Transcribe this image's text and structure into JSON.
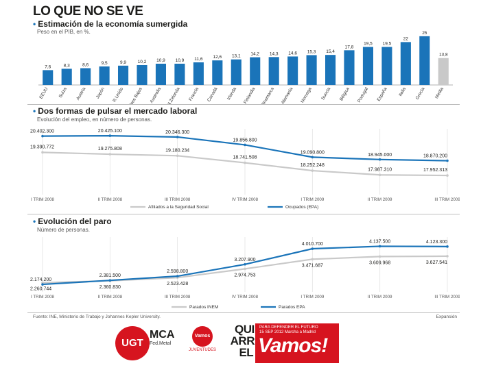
{
  "header": {
    "title": "LO QUE NO SE VE"
  },
  "colors": {
    "blue": "#1a74b9",
    "grey": "#c9c9c9",
    "red": "#d6141f",
    "text": "#1d1d1b"
  },
  "sections": {
    "s1": {
      "title": "Estimación de la economía sumergida",
      "subtitle": "Peso en el PIB, en %."
    },
    "s2": {
      "title": "Dos formas de pulsar el mercado laboral",
      "subtitle": "Evolución del empleo, en número de personas."
    },
    "s3": {
      "title": "Evolución del paro",
      "subtitle": "Número de personas."
    }
  },
  "footer": {
    "source": "Fuente: INE, Ministerio de Trabajo y Johannes Kepler University.",
    "credit": "Expansión"
  },
  "logos": {
    "ugt": "UGT",
    "mca_name": "MCA",
    "mca_sub": "Fed.Metal",
    "vamos_small_circle": "Vamos",
    "vamos_small_text": "JUVENTUDES",
    "quieren_lines": [
      "QUIEREN",
      "ARRUINAR",
      "EL PAÍS"
    ],
    "vamos_top": [
      "PARA DEFENDER EL FUTURO",
      "15 SEP 2012 Marcha a Madrid"
    ],
    "vamos_main": "Vamos!"
  },
  "chart_data": [
    {
      "type": "bar",
      "title": "Estimación de la economía sumergida",
      "subtitle": "Peso en el PIB, en %.",
      "categories": [
        "EEUU",
        "Suiza",
        "Austria",
        "Japón",
        "R.Unido",
        "Países Bajos",
        "Australia",
        "N.Zelanda",
        "Francia",
        "Canadá",
        "Irlanda",
        "Finlandia",
        "Dinamarca",
        "Alemania",
        "Noruega",
        "Suecia",
        "Bélgica",
        "Portugal",
        "España",
        "Italia",
        "Grecia",
        "Media"
      ],
      "values": [
        7.6,
        8.3,
        8.6,
        9.5,
        9.9,
        10.2,
        10.9,
        10.9,
        11.6,
        12.6,
        13.1,
        14.2,
        14.3,
        14.6,
        15.3,
        15.4,
        17.8,
        19.5,
        19.5,
        22,
        25,
        13.8
      ],
      "value_labels": [
        "7,6",
        "8,3",
        "8,6",
        "9,5",
        "9,9",
        "10,2",
        "10,9",
        "10,9",
        "11,6",
        "12,6",
        "13,1",
        "14,2",
        "14,3",
        "14,6",
        "15,3",
        "15,4",
        "17,8",
        "19,5",
        "19,5",
        "22",
        "25",
        "13,8"
      ],
      "highlight": "Media",
      "ylim": [
        0,
        26
      ]
    },
    {
      "type": "line",
      "title": "Dos formas de pulsar el mercado laboral",
      "subtitle": "Evolución del empleo, en número de personas.",
      "x": [
        "I TRIM 2008",
        "II TRIM 2008",
        "III TRIM 2008",
        "IV TRIM 2008",
        "I TRIM 2009",
        "II TRIM 2009",
        "III TRIM 2009"
      ],
      "series": [
        {
          "name": "Ocupados (EPA)",
          "color": "#1a74b9",
          "values": [
            20402300,
            20425100,
            20346300,
            19856800,
            19090800,
            18945000,
            18870200
          ],
          "labels": [
            "20.402.300",
            "20.425.100",
            "20.346.300",
            "19.856.800",
            "19.090.800",
            "18.945.000",
            "18.870.200"
          ]
        },
        {
          "name": "Afiliados a la Seguridad Social",
          "color": "#c9c9c9",
          "values": [
            19390772,
            19275808,
            19180234,
            18741508,
            18252248,
            17987310,
            17952313
          ],
          "labels": [
            "19.390.772",
            "19.275.808",
            "19.180.234",
            "18.741.508",
            "18.252.248",
            "17.987.310",
            "17.952.313"
          ]
        }
      ],
      "ylim": [
        17700000,
        20600000
      ]
    },
    {
      "type": "line",
      "title": "Evolución del paro",
      "subtitle": "Número de personas.",
      "x": [
        "I TRIM 2008",
        "II TRIM 2008",
        "III TRIM 2008",
        "IV TRIM 2008",
        "I TRIM 2009",
        "II TRIM 2009",
        "III TRIM 2009"
      ],
      "series": [
        {
          "name": "Parados EPA",
          "color": "#1a74b9",
          "values": [
            2174200,
            2381500,
            2598800,
            3207900,
            4010700,
            4137500,
            4123300
          ],
          "labels": [
            "2.174.200",
            "2.381.500",
            "2.598.800",
            "3.207.900",
            "4.010.700",
            "4.137.500",
            "4.123.300"
          ]
        },
        {
          "name": "Parados INEM",
          "color": "#c9c9c9",
          "values": [
            2260744,
            2360830,
            2523428,
            2974753,
            3471687,
            3609968,
            3627541
          ],
          "labels": [
            "2.260.744",
            "2.360.830",
            "2.523.428",
            "2.974.753",
            "3.471.687",
            "3.609.968",
            "3.627.541"
          ]
        }
      ],
      "ylim": [
        2000000,
        4400000
      ]
    }
  ]
}
